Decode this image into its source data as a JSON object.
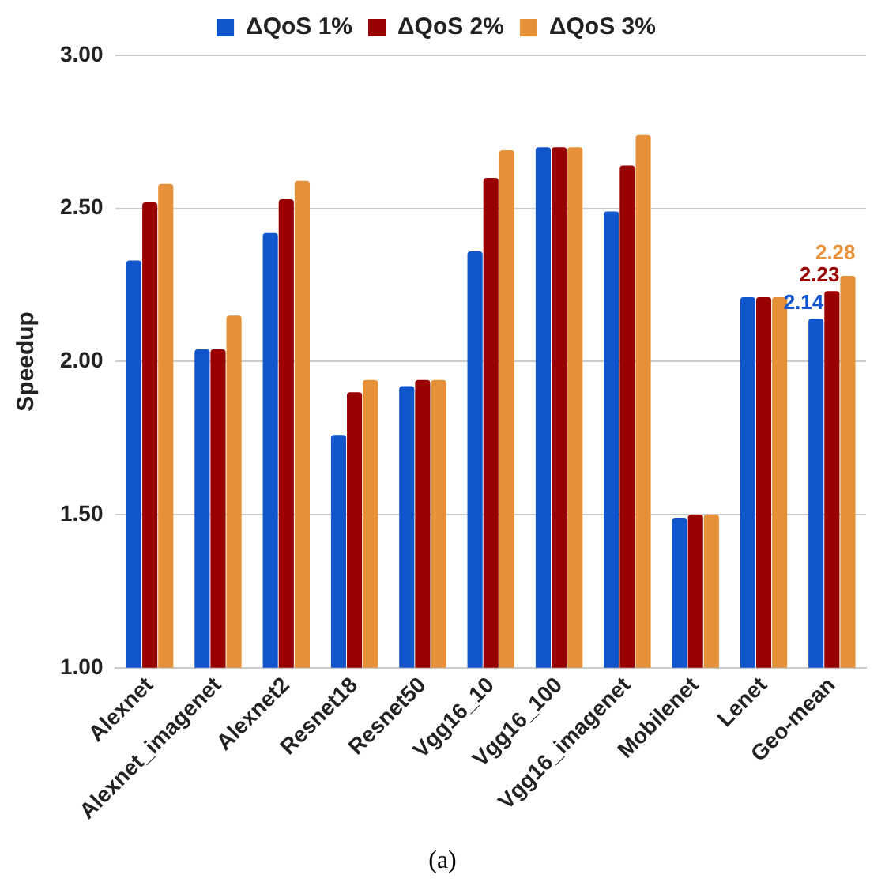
{
  "chart_data": {
    "type": "bar",
    "ylabel": "Speedup",
    "categories": [
      "Alexnet",
      "Alexnet_imagenet",
      "Alexnet2",
      "Resnet18",
      "Resnet50",
      "Vgg16_10",
      "Vgg16_100",
      "Vgg16_imagenet",
      "Mobilenet",
      "Lenet",
      "Geo-mean"
    ],
    "series": [
      {
        "name": "ΔQoS 1%",
        "color": "#1155cc",
        "values": [
          2.33,
          2.04,
          2.42,
          1.76,
          1.92,
          2.36,
          2.7,
          2.49,
          1.49,
          2.21,
          2.14
        ],
        "value_labels": [
          null,
          null,
          null,
          null,
          null,
          null,
          null,
          null,
          null,
          null,
          "2.14"
        ]
      },
      {
        "name": "ΔQoS 2%",
        "color": "#990000",
        "values": [
          2.52,
          2.04,
          2.53,
          1.9,
          1.94,
          2.6,
          2.7,
          2.64,
          1.5,
          2.21,
          2.23
        ],
        "value_labels": [
          null,
          null,
          null,
          null,
          null,
          null,
          null,
          null,
          null,
          null,
          "2.23"
        ]
      },
      {
        "name": "ΔQoS 3%",
        "color": "#e69138",
        "values": [
          2.58,
          2.15,
          2.59,
          1.94,
          1.94,
          2.69,
          2.7,
          2.74,
          1.5,
          2.21,
          2.28
        ],
        "value_labels": [
          null,
          null,
          null,
          null,
          null,
          null,
          null,
          null,
          null,
          null,
          "2.28"
        ]
      }
    ],
    "ylim": [
      1,
      3
    ],
    "yticks": [
      {
        "value": 1,
        "label": "1.00"
      },
      {
        "value": 1.5,
        "label": "1.50"
      },
      {
        "value": 2,
        "label": "2.00"
      },
      {
        "value": 2.5,
        "label": "2.50"
      },
      {
        "value": 3,
        "label": "3.00"
      }
    ],
    "grid": "y",
    "legend": "top",
    "annotations": [
      "(a)"
    ]
  }
}
